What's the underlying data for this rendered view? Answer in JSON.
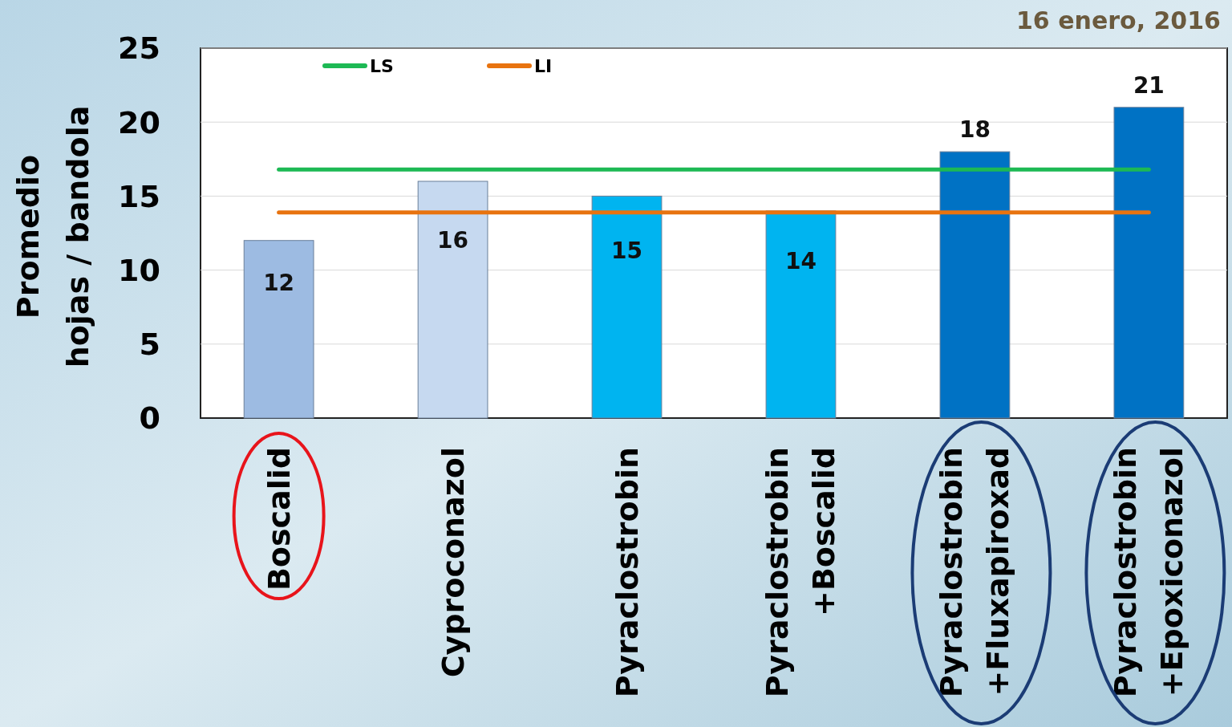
{
  "chart_data": {
    "type": "bar",
    "ylabel": "Promedio\nhojas / bandola",
    "categories": [
      "Boscalid",
      "Cyproconazol",
      "Pyraclostrobin",
      "Pyraclostrobin\n+Boscalid",
      "Pyraclostrobin\n+Fluxapiroxad",
      "Pyraclostrobin\n+Epoxiconazol"
    ],
    "values": [
      12,
      16,
      15,
      14,
      18,
      21
    ],
    "colors": [
      "#9dbbe2",
      "#c6d9f0",
      "#00b4f0",
      "#00b4f0",
      "#0072c4",
      "#0072c4"
    ],
    "value_labels": [
      "12",
      "16",
      "15",
      "14",
      "18",
      "21"
    ],
    "series": [
      {
        "name": "LS",
        "type": "line",
        "color": "#1db954",
        "values": [
          16.8,
          16.8,
          16.8,
          16.8,
          16.8,
          16.8
        ]
      },
      {
        "name": "LI",
        "type": "line",
        "color": "#e8730f",
        "values": [
          13.9,
          13.9,
          13.9,
          13.9,
          13.9,
          13.9
        ]
      }
    ],
    "ylim": [
      0,
      25
    ],
    "yticks": [
      0,
      5,
      10,
      15,
      20,
      25
    ],
    "grid": "y",
    "legend": "top left",
    "annotations": [
      "16 enero, 2016"
    ]
  }
}
